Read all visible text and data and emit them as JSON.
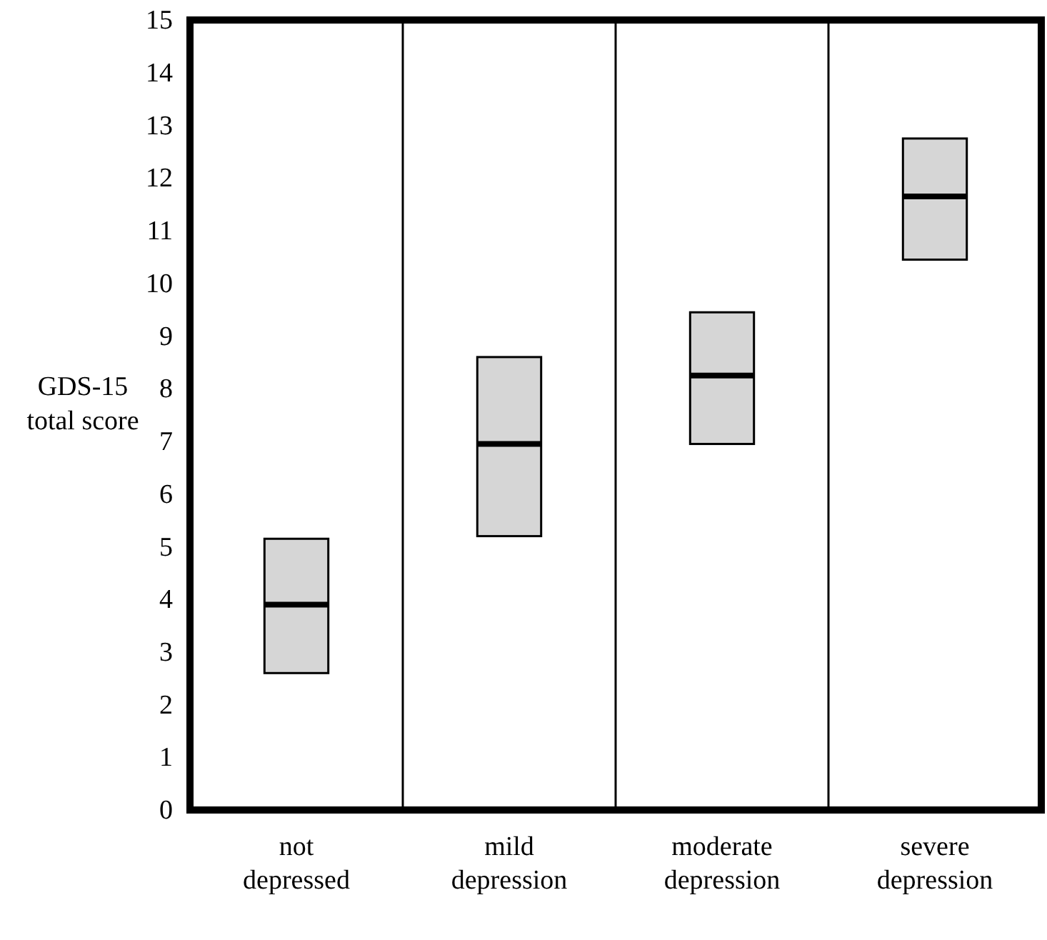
{
  "chart_data": {
    "type": "box",
    "ylabel": "GDS-15\ntotal score",
    "categories": [
      "not\ndepressed",
      "mild\ndepression",
      "moderate\ndepression",
      "severe\ndepression"
    ],
    "boxes": [
      {
        "low": 2.6,
        "q1": 2.6,
        "median": 3.9,
        "q3": 5.15,
        "high": 5.15
      },
      {
        "low": 5.2,
        "q1": 5.2,
        "median": 6.95,
        "q3": 8.6,
        "high": 8.6
      },
      {
        "low": 6.95,
        "q1": 6.95,
        "median": 8.25,
        "q3": 9.45,
        "high": 9.45
      },
      {
        "low": 10.45,
        "q1": 10.45,
        "median": 11.65,
        "q3": 12.75,
        "high": 12.75
      }
    ],
    "color": "#d6d6d6",
    "ylim": [
      0,
      15
    ],
    "yticks": [
      0,
      1,
      2,
      3,
      4,
      5,
      6,
      7,
      8,
      9,
      10,
      11,
      12,
      13,
      14,
      15
    ],
    "grid": "x"
  }
}
